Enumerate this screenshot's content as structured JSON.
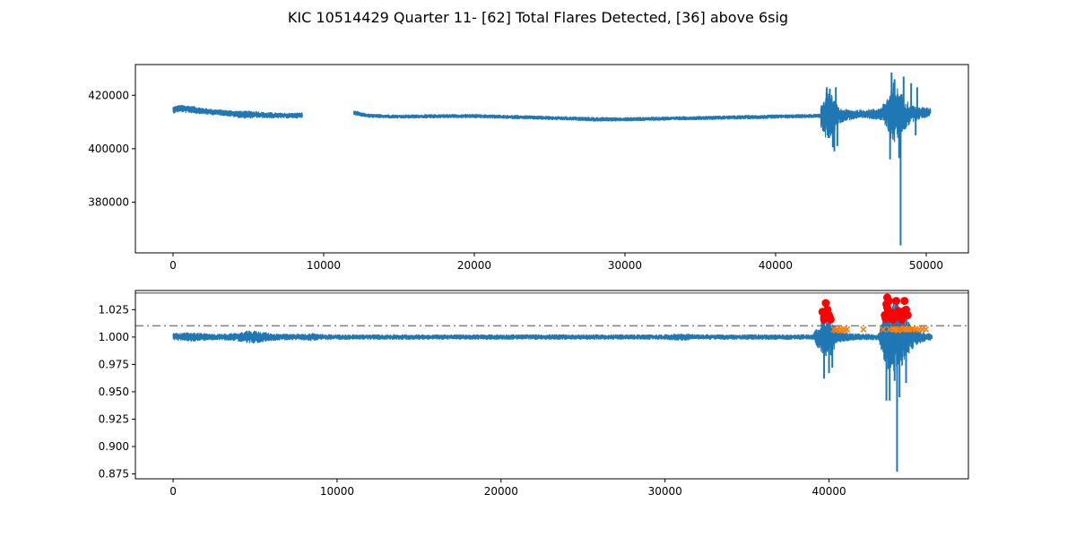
{
  "figure": {
    "title": "KIC 10514429 Quarter 11- [62] Total Flares Detected, [36] above 6sig"
  },
  "colors": {
    "series": "#1f77b4",
    "flare_markers": "#ff0000",
    "candidate_markers": "#ff7f0e",
    "threshold_line": "#808080"
  },
  "chart_data": [
    {
      "type": "line",
      "name": "raw-flux",
      "xlim": [
        -2500,
        52800
      ],
      "ylim": [
        361000,
        431500
      ],
      "xticks": [
        0,
        10000,
        20000,
        30000,
        40000,
        50000
      ],
      "yticks": [
        380000,
        400000,
        420000
      ],
      "xticklabels": [
        "0",
        "10000",
        "20000",
        "30000",
        "40000",
        "50000"
      ],
      "yticklabels": [
        "380000",
        "400000",
        "420000"
      ],
      "grid": false,
      "gaps": [
        [
          8600,
          12000
        ]
      ],
      "series": [
        {
          "segments": [
            {
              "x": [
                0,
                300,
                600,
                1000,
                1500,
                2000,
                2500,
                3000,
                3500,
                4000,
                4500,
                5000,
                5500,
                6000,
                6500,
                7000,
                7500,
                8000,
                8600
              ],
              "y": [
                414500,
                414900,
                415000,
                414800,
                414500,
                414100,
                413800,
                413600,
                413400,
                413100,
                412800,
                412700,
                412800,
                412600,
                412500,
                412400,
                412400,
                412400,
                412500
              ],
              "noise": [
                1400,
                1400,
                1500,
                1500,
                1400,
                1300,
                1200,
                1200,
                1200,
                1300,
                1500,
                1500,
                1400,
                1200,
                1200,
                1100,
                1100,
                1100,
                1200
              ]
            },
            {
              "x": [
                12000,
                12500,
                13000,
                15000,
                18000,
                20000,
                23000,
                25000,
                27000,
                28000,
                30000,
                32000,
                35000,
                38000,
                40000,
                42000,
                43000
              ],
              "y": [
                413500,
                412800,
                412300,
                412000,
                412200,
                412200,
                411800,
                411500,
                411200,
                411000,
                411000,
                411200,
                411500,
                411800,
                412000,
                412200,
                412300
              ],
              "noise": [
                900,
                800,
                800,
                800,
                800,
                800,
                800,
                800,
                800,
                900,
                800,
                800,
                800,
                800,
                800,
                800,
                800
              ]
            },
            {
              "x": [
                43000,
                43300,
                43600,
                43900,
                44200,
                44500,
                45000,
                45500,
                46000,
                46500,
                47000,
                47500,
                47800,
                48200,
                48600,
                49000,
                49500,
                50000,
                50300
              ],
              "y": [
                412300,
                412500,
                412500,
                412400,
                412300,
                412500,
                412700,
                412800,
                413000,
                413000,
                413000,
                413200,
                413300,
                413200,
                413000,
                413100,
                413300,
                413500,
                414000
              ],
              "noise": [
                5000,
                9000,
                9000,
                6000,
                3000,
                2500,
                2000,
                1800,
                1800,
                2000,
                2500,
                7000,
                12000,
                9000,
                6000,
                3500,
                2500,
                2000,
                1500
              ]
            }
          ],
          "spikes": [
            {
              "x": 43400,
              "y": 423000
            },
            {
              "x": 43600,
              "y": 422500
            },
            {
              "x": 43800,
              "y": 400500
            },
            {
              "x": 43900,
              "y": 399000
            },
            {
              "x": 44000,
              "y": 423000
            },
            {
              "x": 44100,
              "y": 401000
            },
            {
              "x": 47600,
              "y": 396000
            },
            {
              "x": 47700,
              "y": 428500
            },
            {
              "x": 47900,
              "y": 426000
            },
            {
              "x": 48200,
              "y": 396500
            },
            {
              "x": 48300,
              "y": 363800
            },
            {
              "x": 48500,
              "y": 427000
            },
            {
              "x": 49000,
              "y": 424500
            },
            {
              "x": 49300,
              "y": 405000
            },
            {
              "x": 49400,
              "y": 423000
            }
          ]
        }
      ]
    },
    {
      "type": "line",
      "name": "normalized-flux",
      "xlim": [
        -2300,
        48500
      ],
      "ylim": [
        0.8705,
        1.0425
      ],
      "xticks": [
        0,
        10000,
        20000,
        30000,
        40000
      ],
      "yticks": [
        0.875,
        0.9,
        0.925,
        0.95,
        0.975,
        1.0,
        1.025
      ],
      "xticklabels": [
        "0",
        "10000",
        "20000",
        "30000",
        "40000"
      ],
      "yticklabels": [
        "0.875",
        "0.900",
        "0.925",
        "0.950",
        "0.975",
        "1.000",
        "1.025"
      ],
      "grid": false,
      "reference_lines": [
        {
          "y": 1.0103,
          "style": "dashdot",
          "color": "#808080"
        },
        {
          "y": 1.0402,
          "style": "solid",
          "color": "#808080"
        }
      ],
      "series": [
        {
          "segments": [
            {
              "x": [
                0,
                500,
                1000,
                1500,
                2000,
                2500,
                3000,
                4000,
                4500,
                5000,
                5500,
                6000,
                7000,
                8000,
                8500,
                9000,
                10000,
                12000,
                15000,
                18000,
                20000,
                22000,
                25000,
                28000,
                30000,
                31000,
                32000,
                35000,
                38000,
                39000,
                39500,
                39700,
                39900,
                40100,
                40300,
                40600,
                41000,
                42000,
                42500,
                43000,
                43400,
                43600,
                43800,
                44000,
                44200,
                44400,
                44700,
                45000,
                45500,
                46000,
                46300
              ],
              "y": [
                1.0005,
                1.0,
                1.0,
                1.0,
                1.0,
                1.0,
                1.0,
                1.0,
                1.0,
                1.0,
                1.0,
                1.0,
                1.0,
                1.0,
                1.0,
                1.0,
                1.0,
                1.0,
                1.0,
                1.0,
                1.0,
                1.0,
                1.0,
                1.0,
                1.0,
                1.0,
                1.0,
                1.0,
                1.0,
                1.0,
                1.0,
                1.0,
                1.0,
                1.0,
                1.0,
                1.0,
                1.0,
                1.0,
                1.0,
                1.0,
                1.0,
                1.0,
                1.0,
                1.0,
                1.0,
                1.0,
                1.0,
                1.0,
                1.0,
                1.0,
                1.0
              ],
              "noise": [
                0.0035,
                0.004,
                0.0045,
                0.004,
                0.0035,
                0.003,
                0.003,
                0.004,
                0.006,
                0.006,
                0.005,
                0.0035,
                0.003,
                0.003,
                0.004,
                0.003,
                0.0025,
                0.0025,
                0.0025,
                0.0025,
                0.0025,
                0.0025,
                0.0025,
                0.0025,
                0.0025,
                0.0035,
                0.0025,
                0.0025,
                0.0025,
                0.0025,
                0.014,
                0.022,
                0.016,
                0.02,
                0.012,
                0.006,
                0.004,
                0.003,
                0.003,
                0.003,
                0.025,
                0.03,
                0.03,
                0.035,
                0.035,
                0.03,
                0.02,
                0.012,
                0.006,
                0.004,
                0.003
              ]
            }
          ],
          "spikes": [
            {
              "x": 39700,
              "y": 0.962
            },
            {
              "x": 40000,
              "y": 0.967
            },
            {
              "x": 40200,
              "y": 0.972
            },
            {
              "x": 43500,
              "y": 0.942
            },
            {
              "x": 43700,
              "y": 0.942
            },
            {
              "x": 44000,
              "y": 0.96
            },
            {
              "x": 44150,
              "y": 0.877
            },
            {
              "x": 44300,
              "y": 0.945
            },
            {
              "x": 44700,
              "y": 0.958
            }
          ],
          "flares_above_6sig": {
            "x": [
              39600,
              39700,
              39800,
              39900,
              40000,
              40100,
              39700,
              39850,
              40050,
              43400,
              43500,
              43550,
              43600,
              43700,
              43800,
              43900,
              44000,
              44100,
              44200,
              44300,
              44400,
              44500,
              44600,
              44700,
              44800,
              43450,
              43650,
              43850,
              44050,
              44250,
              44450,
              44650,
              43550,
              43750,
              44150,
              44600
            ],
            "y": [
              1.023,
              1.018,
              1.031,
              1.025,
              1.02,
              1.016,
              1.016,
              1.021,
              1.018,
              1.02,
              1.03,
              1.036,
              1.025,
              1.019,
              1.022,
              1.016,
              1.02,
              1.033,
              1.024,
              1.018,
              1.017,
              1.02,
              1.033,
              1.025,
              1.02,
              1.017,
              1.033,
              1.016,
              1.02,
              1.022,
              1.016,
              1.021,
              1.027,
              1.018,
              1.019,
              1.024
            ]
          },
          "flares_other": {
            "x": [
              40300,
              40500,
              40700,
              40900,
              41100,
              42100,
              43300,
              43700,
              44000,
              44100,
              44300,
              44500,
              44700,
              44800,
              44900,
              45100,
              45300,
              45500,
              45700,
              45900,
              40400,
              40800,
              41000,
              43900,
              44200,
              44600
            ],
            "y": [
              1.007,
              1.007,
              1.007,
              1.007,
              1.007,
              1.007,
              1.007,
              1.007,
              1.007,
              1.007,
              1.007,
              1.007,
              1.007,
              1.007,
              1.007,
              1.007,
              1.007,
              1.007,
              1.007,
              1.007,
              1.006,
              1.006,
              1.006,
              1.007,
              1.006,
              1.008
            ]
          }
        }
      ]
    }
  ]
}
